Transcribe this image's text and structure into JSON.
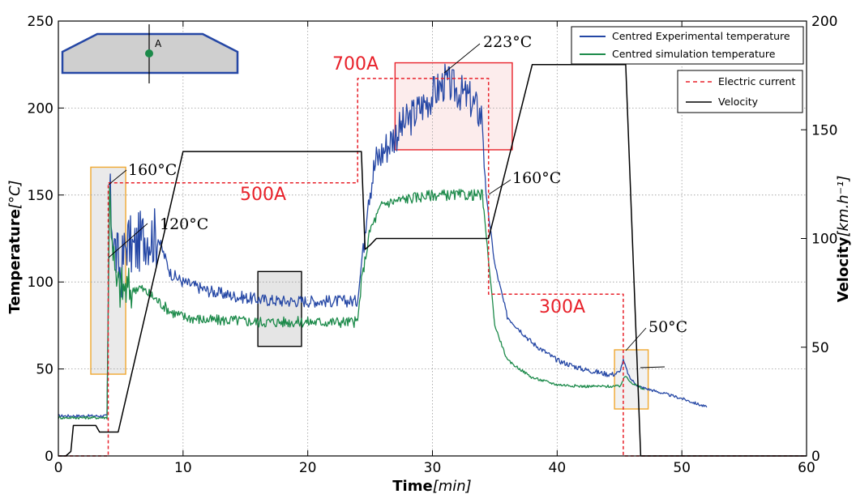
{
  "chart_data": {
    "type": "line",
    "title": "",
    "xlabel": {
      "bold": "Time",
      "italic": "[min]"
    },
    "ylabel_left": {
      "bold": "Temperature",
      "italic": "[°C]"
    },
    "ylabel_right": {
      "bold": "Velocity",
      "italic": "[km.h⁻¹]"
    },
    "xlim": [
      0,
      60
    ],
    "ylim_left": [
      0,
      250
    ],
    "ylim_right": [
      0,
      200
    ],
    "x_ticks": [
      0,
      10,
      20,
      30,
      40,
      50,
      60
    ],
    "y_ticks_left": [
      0,
      50,
      100,
      150,
      200,
      250
    ],
    "y_ticks_right": [
      0,
      50,
      100,
      150,
      200
    ],
    "grid": true,
    "legend_placement": "top-right",
    "series": [
      {
        "name": "Centred Experimental temperature",
        "axis": "left",
        "color": "#2547a5",
        "noise": true,
        "x": [
          0,
          3.9,
          4.1,
          4.5,
          5,
          5.5,
          6,
          7,
          8,
          9,
          10,
          12,
          14,
          16,
          18,
          20,
          22,
          24,
          24.3,
          24.8,
          25.5,
          27,
          29,
          31,
          33,
          34,
          34.3,
          35,
          36,
          38,
          40,
          42,
          44,
          44.5,
          45,
          45.3,
          45.8,
          46.5,
          48,
          50,
          52
        ],
        "y": [
          23,
          23,
          150,
          120,
          105,
          125,
          118,
          128,
          125,
          105,
          100,
          95,
          92,
          90,
          89,
          89,
          89,
          89,
          110,
          150,
          170,
          185,
          200,
          215,
          205,
          195,
          150,
          110,
          80,
          65,
          55,
          50,
          47,
          47,
          48,
          55,
          45,
          40,
          37,
          33,
          28
        ]
      },
      {
        "name": "Centred simulation temperature",
        "axis": "left",
        "color": "#1c8a4a",
        "noise": true,
        "x": [
          0,
          3.9,
          4.1,
          4.6,
          5.5,
          6.5,
          7.5,
          9,
          10,
          12,
          14,
          16,
          18,
          20,
          22,
          24,
          24.3,
          25,
          26,
          28,
          30,
          32,
          34,
          34.4,
          35,
          36,
          38,
          40,
          42,
          44,
          45,
          45.5,
          46,
          47
        ],
        "y": [
          22,
          22,
          150,
          98,
          95,
          97,
          92,
          83,
          80,
          78,
          78,
          77,
          77,
          77,
          77,
          77,
          100,
          130,
          145,
          148,
          150,
          150,
          150,
          120,
          75,
          55,
          45,
          41,
          40,
          40,
          40,
          46,
          42,
          38
        ]
      },
      {
        "name": "Electric current",
        "axis": "left",
        "color": "#e8212a",
        "dashed": true,
        "x": [
          0,
          4,
          4,
          24,
          24,
          34.5,
          34.5,
          45.3,
          45.3,
          60
        ],
        "y": [
          0,
          0,
          157,
          157,
          217,
          217,
          93,
          93,
          0,
          0
        ]
      },
      {
        "name": "Velocity",
        "axis": "right",
        "color": "#000000",
        "x": [
          0,
          0.6,
          1,
          1.2,
          3,
          3.3,
          4.8,
          10,
          24.3,
          24.6,
          25,
          25.5,
          34.5,
          38,
          45.5,
          46.7,
          47,
          60
        ],
        "y": [
          0,
          0,
          2,
          14,
          14,
          11,
          11,
          140,
          140,
          95,
          97,
          100,
          100,
          180,
          180,
          0,
          0,
          0
        ]
      }
    ],
    "annotations": [
      "160°C",
      "120°C",
      "223°C",
      "160°C",
      "50°C",
      "700A",
      "500A",
      "300A",
      "A"
    ],
    "highlight_boxes": [
      {
        "x0": 2.6,
        "x1": 5.4,
        "y0": 47,
        "y1": 166,
        "color": "#f0a830",
        "fill": "#d8d8d8"
      },
      {
        "x0": 16,
        "x1": 19.5,
        "y0": 63,
        "y1": 106,
        "color": "#000000",
        "fill": "#cfcfcf"
      },
      {
        "x0": 27,
        "x1": 36.4,
        "y0": 176,
        "y1": 226,
        "color": "#e8212a",
        "fill": "#fadcdc"
      },
      {
        "x0": 44.6,
        "x1": 47.3,
        "y0": 27,
        "y1": 61,
        "color": "#f0a830",
        "fill": "#e6e6e6"
      }
    ]
  }
}
